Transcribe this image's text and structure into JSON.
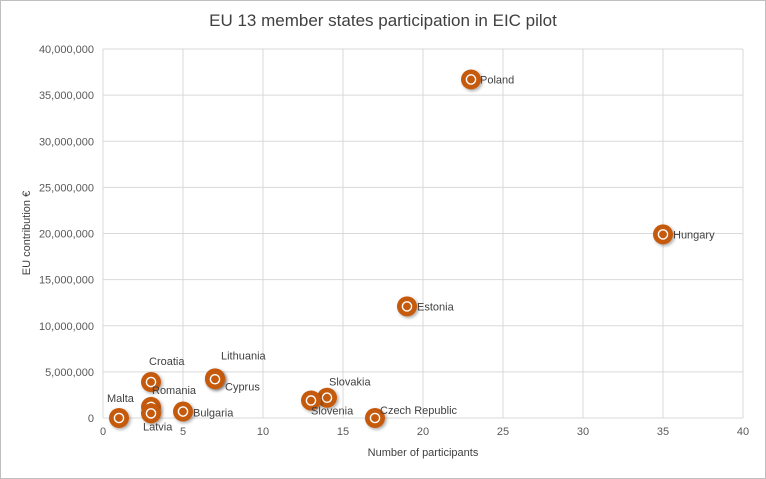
{
  "chart_data": {
    "type": "scatter",
    "title": "EU 13 member states participation in EIC pilot",
    "xlabel": "Number of participants",
    "ylabel": "EU contribution €",
    "xlim": [
      0,
      40
    ],
    "ylim": [
      0,
      40000000
    ],
    "x_ticks": [
      "0",
      "5",
      "10",
      "15",
      "20",
      "25",
      "30",
      "35",
      "40"
    ],
    "y_ticks": [
      "0",
      "5,000,000",
      "10,000,000",
      "15,000,000",
      "20,000,000",
      "25,000,000",
      "30,000,000",
      "35,000,000",
      "40,000,000"
    ],
    "grid": true,
    "marker_color": "#c55a11",
    "points": [
      {
        "label": "Poland",
        "x": 23,
        "y": 36700000
      },
      {
        "label": "Hungary",
        "x": 35,
        "y": 19900000
      },
      {
        "label": "Estonia",
        "x": 19,
        "y": 12100000
      },
      {
        "label": "Croatia",
        "x": 3,
        "y": 3900000
      },
      {
        "label": "Lithuania",
        "x": 7,
        "y": 4300000
      },
      {
        "label": "Cyprus",
        "x": 7,
        "y": 4200000
      },
      {
        "label": "Slovakia",
        "x": 14,
        "y": 2200000
      },
      {
        "label": "Slovenia",
        "x": 13,
        "y": 1900000
      },
      {
        "label": "Czech Republic",
        "x": 17,
        "y": 0
      },
      {
        "label": "Romania",
        "x": 3,
        "y": 1200000
      },
      {
        "label": "Bulgaria",
        "x": 5,
        "y": 700000
      },
      {
        "label": "Latvia",
        "x": 3,
        "y": 500000
      },
      {
        "label": "Malta",
        "x": 1,
        "y": 0
      }
    ]
  }
}
